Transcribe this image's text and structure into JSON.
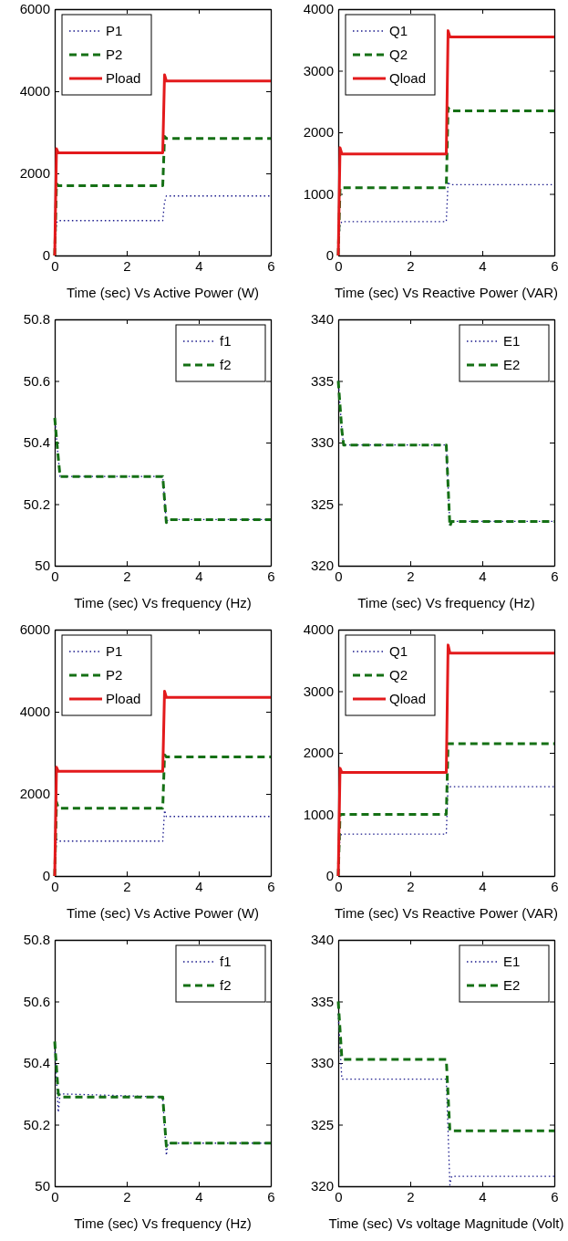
{
  "chart_data": [
    {
      "type": "line",
      "xlabel": "Time (sec) Vs Active Power (W)",
      "xlim": [
        0,
        6
      ],
      "xticks": [
        0,
        2,
        4,
        6
      ],
      "ylim": [
        0,
        6000
      ],
      "yticks": [
        0,
        2000,
        4000,
        6000
      ],
      "legend": "top left",
      "x": [
        0,
        0.05,
        0.1,
        3,
        3.05,
        3.1,
        6
      ],
      "series": [
        {
          "name": "P1",
          "color": "#1a1a8c",
          "line_style": "dotted",
          "values": [
            0,
            800,
            850,
            850,
            1300,
            1450,
            1450
          ]
        },
        {
          "name": "P2",
          "color": "#157015",
          "line_style": "dashed",
          "values": [
            0,
            1750,
            1700,
            1700,
            2900,
            2850,
            2850
          ]
        },
        {
          "name": "Pload",
          "color": "#e31a1c",
          "line_style": "solid",
          "values": [
            0,
            2600,
            2500,
            2500,
            4400,
            4250,
            4250
          ]
        }
      ]
    },
    {
      "type": "line",
      "xlabel": "Time (sec) Vs Reactive Power (VAR)",
      "xlim": [
        0,
        6
      ],
      "xticks": [
        0,
        2,
        4,
        6
      ],
      "ylim": [
        0,
        4000
      ],
      "yticks": [
        0,
        1000,
        2000,
        3000,
        4000
      ],
      "legend": "top left",
      "x": [
        0,
        0.05,
        0.1,
        3,
        3.05,
        3.1,
        6
      ],
      "series": [
        {
          "name": "Q1",
          "color": "#1a1a8c",
          "line_style": "dotted",
          "values": [
            0,
            500,
            550,
            550,
            1200,
            1150,
            1150
          ]
        },
        {
          "name": "Q2",
          "color": "#157015",
          "line_style": "dashed",
          "values": [
            0,
            1100,
            1100,
            1100,
            2400,
            2350,
            2350
          ]
        },
        {
          "name": "Qload",
          "color": "#e31a1c",
          "line_style": "solid",
          "values": [
            0,
            1750,
            1650,
            1650,
            3650,
            3550,
            3550
          ]
        }
      ]
    },
    {
      "type": "line",
      "xlabel": "Time (sec) Vs frequency (Hz)",
      "xlim": [
        0,
        6
      ],
      "xticks": [
        0,
        2,
        4,
        6
      ],
      "ylim": [
        50,
        50.8
      ],
      "yticks": [
        50,
        50.2,
        50.4,
        50.6,
        50.8
      ],
      "legend": "top right",
      "x": [
        0,
        0.1,
        0.15,
        3,
        3.1,
        3.15,
        6
      ],
      "series": [
        {
          "name": "f1",
          "color": "#1a1a8c",
          "line_style": "dotted",
          "values": [
            50.48,
            50.35,
            50.29,
            50.29,
            50.14,
            50.15,
            50.15
          ]
        },
        {
          "name": "f2",
          "color": "#157015",
          "line_style": "dashed",
          "values": [
            50.48,
            50.35,
            50.29,
            50.29,
            50.14,
            50.15,
            50.15
          ]
        }
      ]
    },
    {
      "type": "line",
      "xlabel": "Time (sec) Vs frequency (Hz)",
      "xlim": [
        0,
        6
      ],
      "xticks": [
        0,
        2,
        4,
        6
      ],
      "ylim": [
        320,
        340
      ],
      "yticks": [
        320,
        325,
        330,
        335,
        340
      ],
      "legend": "top right",
      "x": [
        0,
        0.1,
        0.15,
        3,
        3.1,
        3.15,
        6
      ],
      "series": [
        {
          "name": "E1",
          "color": "#1a1a8c",
          "line_style": "dotted",
          "values": [
            335,
            331,
            329.8,
            329.8,
            323.2,
            323.6,
            323.6
          ]
        },
        {
          "name": "E2",
          "color": "#157015",
          "line_style": "dashed",
          "values": [
            335,
            331,
            329.8,
            329.8,
            323.2,
            323.6,
            323.6
          ]
        }
      ]
    },
    {
      "type": "line",
      "xlabel": "Time (sec) Vs Active Power (W)",
      "xlim": [
        0,
        6
      ],
      "xticks": [
        0,
        2,
        4,
        6
      ],
      "ylim": [
        0,
        6000
      ],
      "yticks": [
        0,
        2000,
        4000,
        6000
      ],
      "legend": "top left",
      "x": [
        0,
        0.05,
        0.1,
        3,
        3.05,
        3.1,
        6
      ],
      "series": [
        {
          "name": "P1",
          "color": "#1a1a8c",
          "line_style": "dotted",
          "values": [
            0,
            900,
            850,
            850,
            1600,
            1450,
            1450
          ]
        },
        {
          "name": "P2",
          "color": "#157015",
          "line_style": "dashed",
          "values": [
            0,
            1800,
            1650,
            1650,
            2950,
            2900,
            2900
          ]
        },
        {
          "name": "Pload",
          "color": "#e31a1c",
          "line_style": "solid",
          "values": [
            0,
            2650,
            2550,
            2550,
            4500,
            4350,
            4350
          ]
        }
      ]
    },
    {
      "type": "line",
      "xlabel": "Time (sec) Vs Reactive Power (VAR)",
      "xlim": [
        0,
        6
      ],
      "xticks": [
        0,
        2,
        4,
        6
      ],
      "ylim": [
        0,
        4000
      ],
      "yticks": [
        0,
        1000,
        2000,
        3000,
        4000
      ],
      "legend": "top left",
      "x": [
        0,
        0.05,
        0.1,
        3,
        3.05,
        3.1,
        6
      ],
      "series": [
        {
          "name": "Q1",
          "color": "#1a1a8c",
          "line_style": "dotted",
          "values": [
            0,
            650,
            680,
            680,
            1500,
            1450,
            1450
          ]
        },
        {
          "name": "Q2",
          "color": "#157015",
          "line_style": "dashed",
          "values": [
            0,
            1000,
            1000,
            1000,
            2150,
            2150,
            2150
          ]
        },
        {
          "name": "Qload",
          "color": "#e31a1c",
          "line_style": "solid",
          "values": [
            0,
            1750,
            1680,
            1680,
            3750,
            3620,
            3620
          ]
        }
      ]
    },
    {
      "type": "line",
      "xlabel": "Time (sec) Vs frequency (Hz)",
      "xlim": [
        0,
        6
      ],
      "xticks": [
        0,
        2,
        4,
        6
      ],
      "ylim": [
        50,
        50.8
      ],
      "yticks": [
        50,
        50.2,
        50.4,
        50.6,
        50.8
      ],
      "legend": "top right",
      "x": [
        0,
        0.1,
        0.15,
        3,
        3.1,
        3.15,
        6
      ],
      "series": [
        {
          "name": "f1",
          "color": "#1a1a8c",
          "line_style": "dotted",
          "values": [
            50.45,
            50.24,
            50.3,
            50.29,
            50.1,
            50.14,
            50.14
          ]
        },
        {
          "name": "f2",
          "color": "#157015",
          "line_style": "dashed",
          "values": [
            50.47,
            50.3,
            50.29,
            50.29,
            50.13,
            50.14,
            50.14
          ]
        }
      ]
    },
    {
      "type": "line",
      "xlabel": "Time (sec) Vs voltage Magnitude (Volt)",
      "xlim": [
        0,
        6
      ],
      "xticks": [
        0,
        2,
        4,
        6
      ],
      "ylim": [
        320,
        340
      ],
      "yticks": [
        320,
        325,
        330,
        335,
        340
      ],
      "legend": "top right",
      "x": [
        0,
        0.1,
        0.15,
        3,
        3.1,
        3.15,
        6
      ],
      "series": [
        {
          "name": "E1",
          "color": "#1a1a8c",
          "line_style": "dotted",
          "values": [
            334,
            328.7,
            328.7,
            328.7,
            320.1,
            320.8,
            320.8
          ]
        },
        {
          "name": "E2",
          "color": "#157015",
          "line_style": "dashed",
          "values": [
            335,
            330.4,
            330.3,
            330.3,
            324.5,
            324.5,
            324.5
          ]
        }
      ]
    }
  ]
}
